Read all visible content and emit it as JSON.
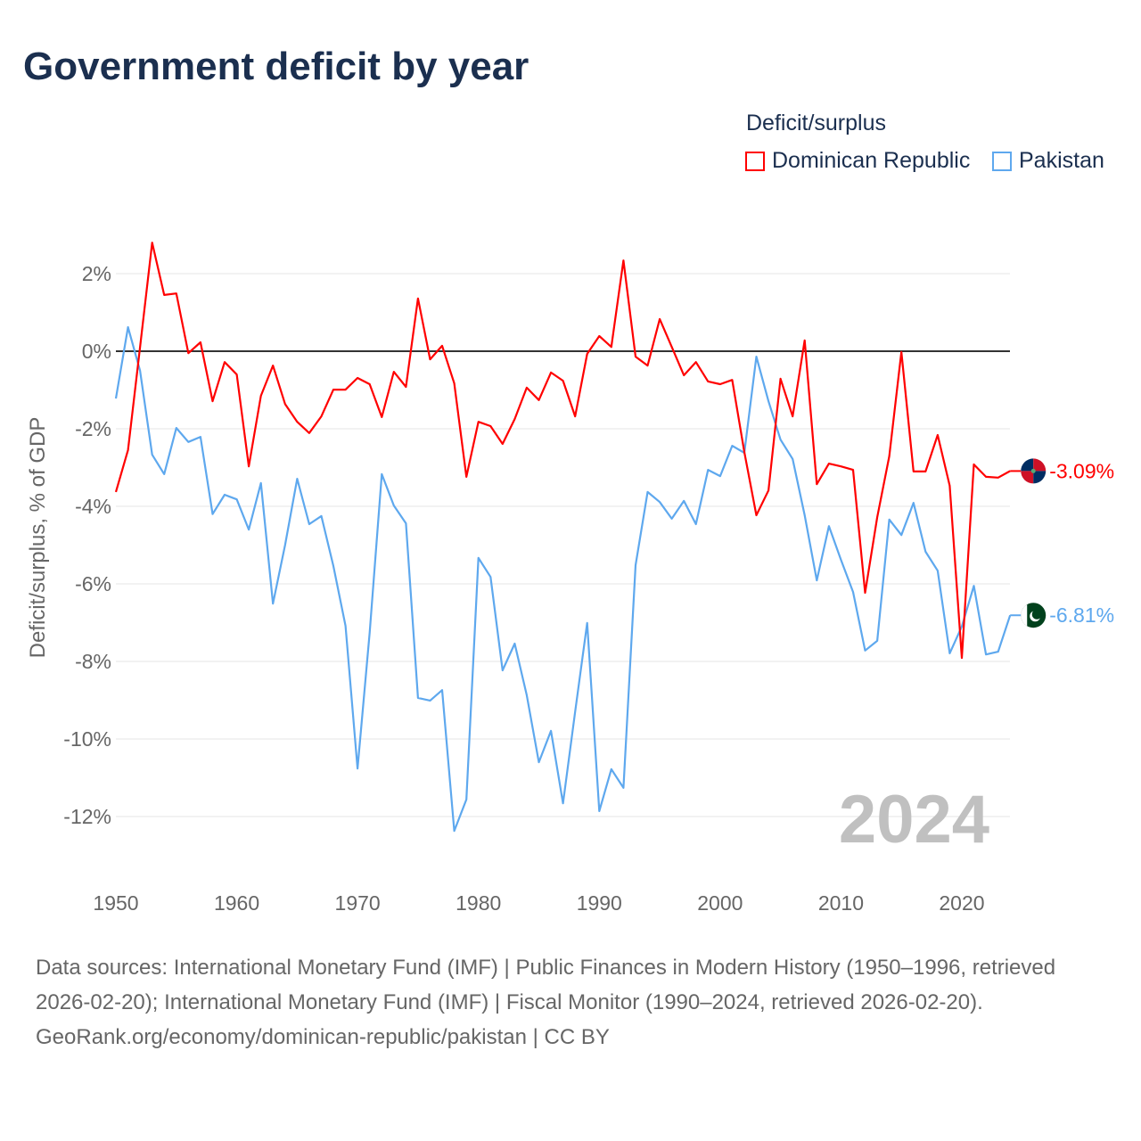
{
  "title": "Government deficit by year",
  "legend": {
    "title": "Deficit/surplus",
    "items": [
      {
        "label": "Dominican Republic",
        "color": "#ff0000"
      },
      {
        "label": "Pakistan",
        "color": "#5ea8ee"
      }
    ]
  },
  "year_watermark": "2024",
  "sources": "Data sources: International Monetary Fund (IMF) | Public Finances in Modern History (1950–1996, retrieved 2026-02-20); International Monetary Fund (IMF) | Fiscal Monitor (1990–2024, retrieved 2026-02-20).",
  "credit": "GeoRank.org/economy/dominican-republic/pakistan | CC BY",
  "chart_data": {
    "type": "line",
    "title": "Government deficit by year",
    "xlabel": "",
    "ylabel": "Deficit/surplus, % of GDP",
    "xlim": [
      1950,
      2024
    ],
    "ylim": [
      -13,
      3
    ],
    "x_ticks": [
      1950,
      1960,
      1970,
      1980,
      1990,
      2000,
      2010,
      2020
    ],
    "x_tick_labels": [
      "1950",
      "1960",
      "1970",
      "1980",
      "1990",
      "2000",
      "2010",
      "2020"
    ],
    "y_ticks": [
      2,
      0,
      -2,
      -4,
      -6,
      -8,
      -10,
      -12
    ],
    "y_tick_labels": [
      "2%",
      "0%",
      "-2%",
      "-4%",
      "-6%",
      "-8%",
      "-10%",
      "-12%"
    ],
    "grid": true,
    "legend_position": "top-right",
    "x_start": 1950,
    "series": [
      {
        "name": "Dominican Republic",
        "color": "#ff0000",
        "end_label": "-3.09%",
        "values": [
          -3.63,
          -2.55,
          0.1,
          2.8,
          1.45,
          1.49,
          -0.05,
          0.23,
          -1.29,
          -0.28,
          -0.6,
          -2.97,
          -1.15,
          -0.37,
          -1.36,
          -1.82,
          -2.11,
          -1.68,
          -0.99,
          -0.99,
          -0.69,
          -0.85,
          -1.7,
          -0.53,
          -0.92,
          1.36,
          -0.21,
          0.14,
          -0.83,
          -3.24,
          -1.82,
          -1.93,
          -2.39,
          -1.75,
          -0.94,
          -1.26,
          -0.55,
          -0.76,
          -1.68,
          -0.07,
          0.39,
          0.11,
          2.34,
          -0.14,
          -0.37,
          0.83,
          0.11,
          -0.62,
          -0.28,
          -0.78,
          -0.85,
          -0.74,
          -2.6,
          -4.23,
          -3.59,
          -0.71,
          -1.68,
          0.28,
          -3.43,
          -2.9,
          -2.97,
          -3.06,
          -6.23,
          -4.28,
          -2.71,
          -0.02,
          -3.1,
          -3.1,
          -2.16,
          -3.47,
          -7.91,
          -2.92,
          -3.24,
          -3.26,
          -3.09
        ]
      },
      {
        "name": "Pakistan",
        "color": "#5ea8ee",
        "end_label": "-6.81%",
        "values": [
          -1.22,
          0.62,
          -0.5,
          -2.67,
          -3.17,
          -1.98,
          -2.34,
          -2.21,
          -4.2,
          -3.7,
          -3.82,
          -4.6,
          -3.4,
          -6.51,
          -5.0,
          -3.29,
          -4.46,
          -4.25,
          -5.54,
          -7.08,
          -10.76,
          -7.26,
          -3.17,
          -3.98,
          -4.44,
          -8.94,
          -9.01,
          -8.74,
          -12.37,
          -11.56,
          -5.33,
          -5.82,
          -8.23,
          -7.54,
          -8.87,
          -10.6,
          -9.79,
          -11.66,
          -9.3,
          -7.01,
          -11.86,
          -10.78,
          -11.26,
          -5.52,
          -3.63,
          -3.89,
          -4.32,
          -3.86,
          -4.46,
          -3.06,
          -3.22,
          -2.44,
          -2.62,
          -0.14,
          -1.29,
          -2.28,
          -2.78,
          -4.23,
          -5.91,
          -4.51,
          -5.38,
          -6.21,
          -7.72,
          -7.47,
          -4.34,
          -4.74,
          -3.91,
          -5.17,
          -5.66,
          -7.79,
          -7.1,
          -6.05,
          -7.82,
          -7.75,
          -6.81
        ]
      }
    ]
  }
}
